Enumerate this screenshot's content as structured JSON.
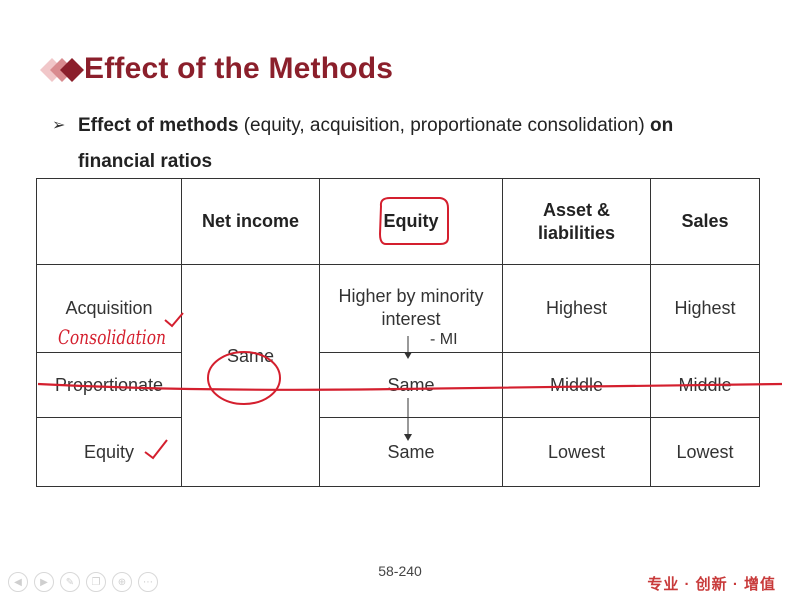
{
  "slide": {
    "title": "Effect of the Methods",
    "bullet": {
      "bold_start": "Effect of methods",
      "normal": " (equity, acquisition, proportionate consolidation) ",
      "bold_end_1": "on",
      "bold_end_2": "financial ratios"
    },
    "table": {
      "headers": [
        "",
        "Net income",
        "Equity",
        "Asset & liabilities",
        "Sales"
      ],
      "rows": [
        {
          "method": "Acquisition",
          "equity": "Higher by minority interest",
          "assets": "Highest",
          "sales": "Highest"
        },
        {
          "method": "Proportionate",
          "equity": "Same",
          "assets": "Middle",
          "sales": "Middle"
        },
        {
          "method": "Equity",
          "equity": "Same",
          "assets": "Lowest",
          "sales": "Lowest"
        }
      ],
      "net_income": "Same",
      "mi_note": "- MI"
    },
    "handwriting": {
      "acquisition_note": "Consolidation"
    },
    "page_number": "58-240",
    "brand": "专业 · 创新 · 增值"
  },
  "player": {
    "icons": [
      "prev-icon",
      "next-icon",
      "pen-icon",
      "copy-icon",
      "zoom-icon",
      "more-icon"
    ]
  },
  "colors": {
    "title": "#8b1f2b",
    "annotation": "#d41f2e",
    "brand": "#c83a3a"
  }
}
